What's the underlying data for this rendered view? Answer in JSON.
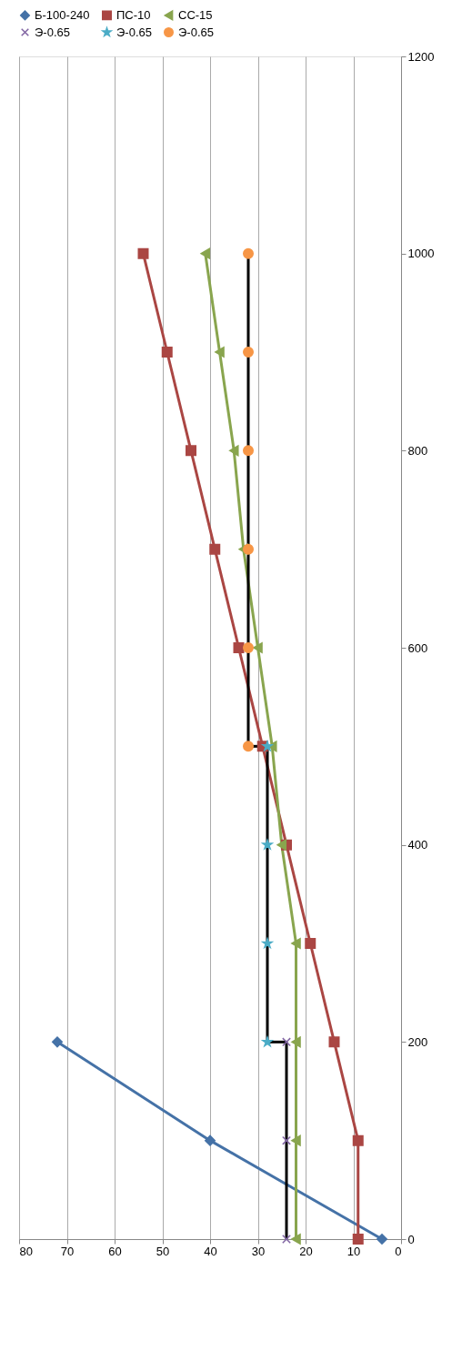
{
  "chart_data": {
    "type": "line",
    "xlim": [
      80,
      0
    ],
    "xticks": [
      80,
      70,
      60,
      50,
      40,
      30,
      20,
      10,
      0
    ],
    "ylim": [
      0,
      1200
    ],
    "yticks": [
      0,
      200,
      400,
      600,
      800,
      1000,
      1200
    ],
    "grid": "x",
    "legend": "top",
    "series": [
      {
        "name": "Б-100-240",
        "color": "#4572a7",
        "marker": "diamond",
        "x": [
          4,
          40,
          72
        ],
        "values": [
          0,
          100,
          200
        ]
      },
      {
        "name": "ПС-10",
        "color": "#aa4643",
        "marker": "square",
        "x": [
          9,
          9,
          14,
          19,
          24,
          29,
          34,
          39,
          44,
          49,
          54
        ],
        "values": [
          0,
          100,
          200,
          300,
          400,
          500,
          600,
          700,
          800,
          900,
          1000
        ]
      },
      {
        "name": "СС-15",
        "color": "#89a54e",
        "marker": "triangle",
        "x": [
          22,
          22,
          22,
          22,
          25,
          27,
          30,
          33,
          35,
          38,
          41
        ],
        "values": [
          0,
          100,
          200,
          300,
          400,
          500,
          600,
          700,
          800,
          900,
          1000
        ]
      },
      {
        "name": "Э-0.65",
        "color": "#000000",
        "marker": "cross",
        "x": [
          24,
          24,
          24
        ],
        "values": [
          0,
          100,
          200
        ]
      },
      {
        "name": "Э-0.65",
        "color": "#000000",
        "marker": "star",
        "x": [
          28,
          28,
          28,
          28
        ],
        "values": [
          200,
          300,
          400,
          500
        ]
      },
      {
        "name": "Э-0.65",
        "color": "#000000",
        "marker": "circle",
        "x": [
          32,
          32,
          32,
          32,
          32,
          32
        ],
        "values": [
          500,
          600,
          700,
          800,
          900,
          1000
        ]
      },
      {
        "color": "#000000",
        "marker": "none",
        "x": [
          24,
          28
        ],
        "values": [
          200,
          200
        ]
      },
      {
        "color": "#000000",
        "marker": "none",
        "x": [
          28,
          32
        ],
        "values": [
          500,
          500
        ]
      }
    ]
  }
}
